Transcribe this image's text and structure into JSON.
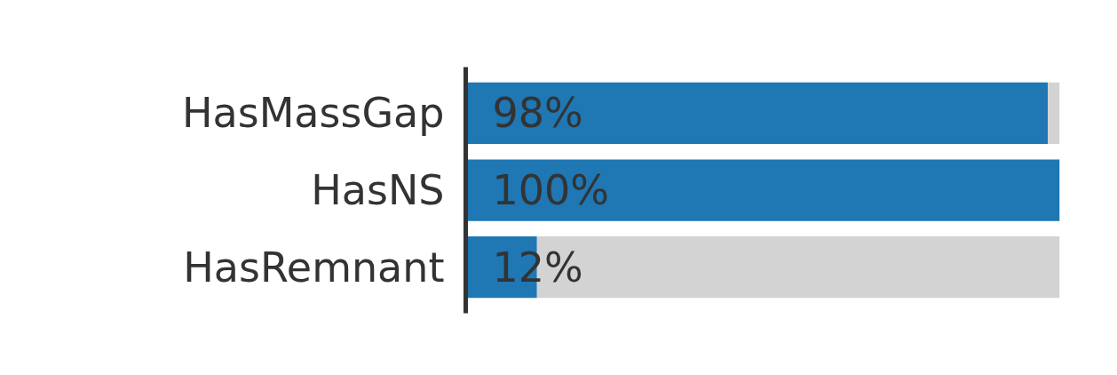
{
  "chart_data": {
    "type": "bar",
    "orientation": "horizontal",
    "stacked": true,
    "categories": [
      "HasMassGap",
      "HasNS",
      "HasRemnant"
    ],
    "series": [
      {
        "color": "#1f77b4",
        "values": [
          98,
          100,
          12
        ],
        "value_labels": [
          "98%",
          "100%",
          "12%"
        ]
      },
      {
        "color": "#d3d3d3",
        "values": [
          2,
          0,
          88
        ]
      }
    ],
    "xlim": [
      0,
      100
    ],
    "tick_labels": "y",
    "grid": false
  }
}
